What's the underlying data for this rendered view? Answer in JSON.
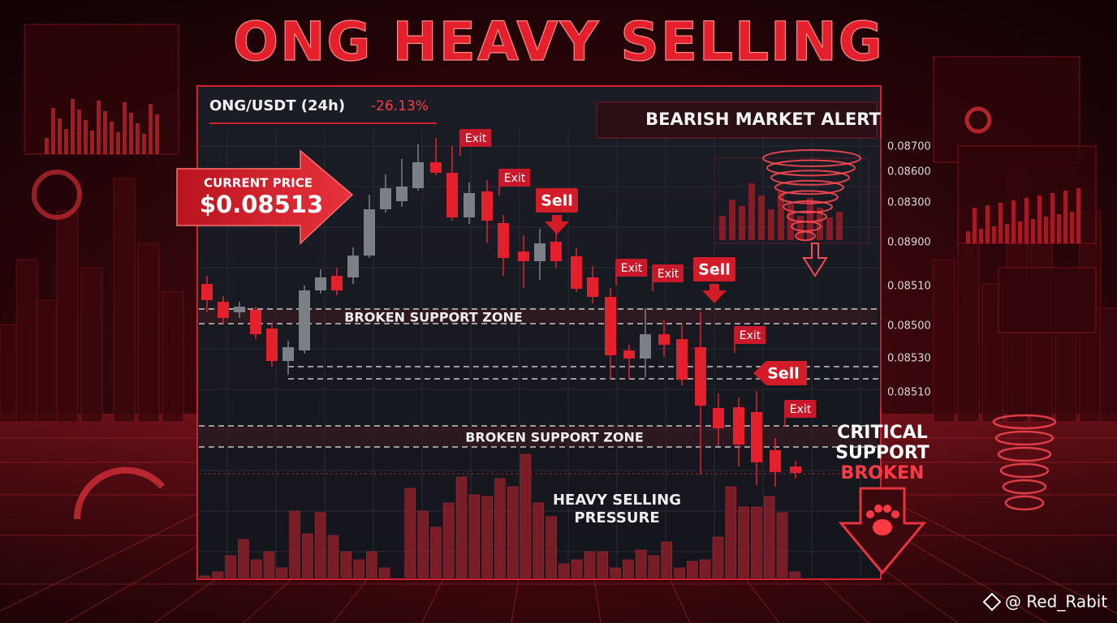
{
  "title": "ONG HEAVY SELLING",
  "ticker": {
    "pair": "ONG/USDT (24h)",
    "change": "-26.13%"
  },
  "alert": "BEARISH MARKET ALERT",
  "current_price": {
    "label": "CURRENT PRICE",
    "value": "$0.08513"
  },
  "price_axis": [
    "0.08700",
    "0.08600",
    "0.08300",
    "0.08900",
    "0.08510",
    "0.08500",
    "0.08530",
    "0.08510"
  ],
  "signals": [
    "Exit",
    "Exit",
    "Sell",
    "Exit",
    "Exit",
    "Sell",
    "Exit",
    "Sell",
    "Exit"
  ],
  "zones": [
    "BROKEN SUPPORT ZONE",
    "BROKEN SUPPORT ZONE"
  ],
  "pressure": [
    "HEAVY SELLING",
    "PRESSURE"
  ],
  "critical": [
    "CRITICAL",
    "SUPPORT",
    "BROKEN"
  ],
  "watermark": "@ Red_Rabit"
}
